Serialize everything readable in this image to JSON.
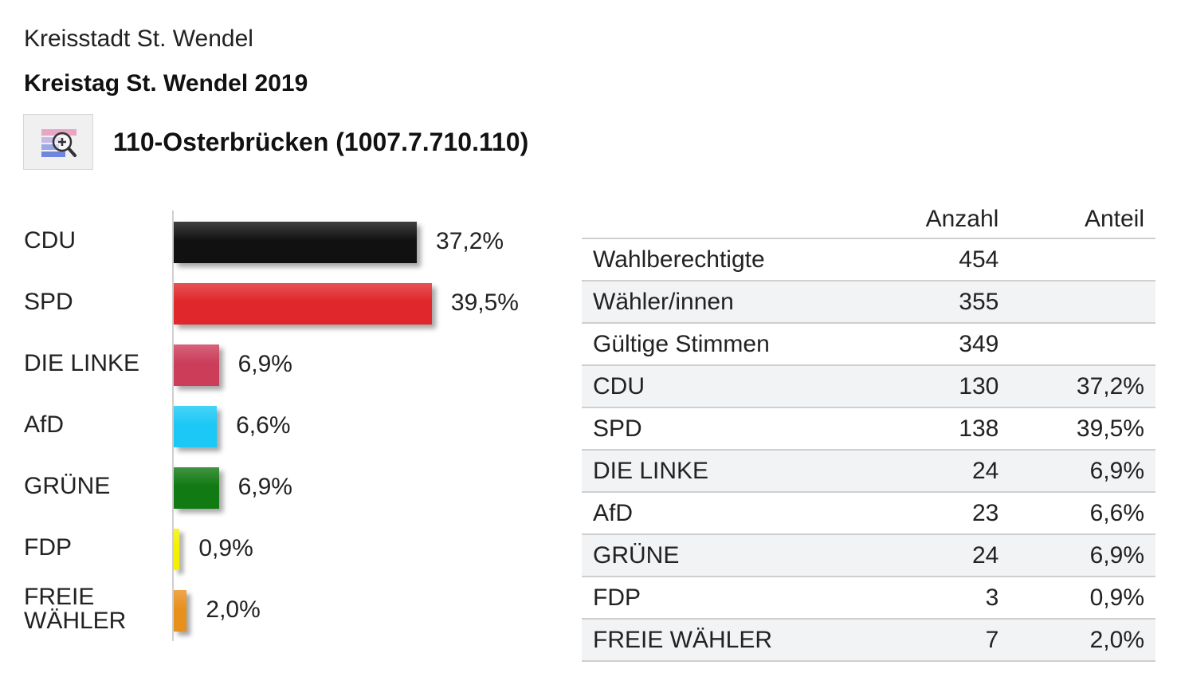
{
  "header": {
    "municipality": "Kreisstadt St. Wendel",
    "election": "Kreistag St. Wendel 2019",
    "district": "110-Osterbrücken (1007.7.710.110)",
    "zoom_icon": "magnifier-zoom-icon"
  },
  "chart_data": {
    "type": "bar",
    "orientation": "horizontal",
    "categories": [
      "CDU",
      "SPD",
      "DIE LINKE",
      "AfD",
      "GRÜNE",
      "FDP",
      "FREIE WÄHLER"
    ],
    "values": [
      37.2,
      39.5,
      6.9,
      6.6,
      6.9,
      0.9,
      2.0
    ],
    "value_labels": [
      "37,2%",
      "39,5%",
      "6,9%",
      "6,6%",
      "6,9%",
      "0,9%",
      "2,0%"
    ],
    "colors": [
      "#111111",
      "#e0272b",
      "#cc3d5a",
      "#1cc8f5",
      "#127a12",
      "#f5f000",
      "#e8901c"
    ],
    "title": "",
    "xlabel": "",
    "ylabel": "",
    "grid": false
  },
  "table": {
    "headers": [
      "",
      "Anzahl",
      "Anteil"
    ],
    "rows": [
      {
        "name": "Wahlberechtigte",
        "count": "454",
        "share": ""
      },
      {
        "name": "Wähler/innen",
        "count": "355",
        "share": ""
      },
      {
        "name": "Gültige Stimmen",
        "count": "349",
        "share": ""
      },
      {
        "name": "CDU",
        "count": "130",
        "share": "37,2%"
      },
      {
        "name": "SPD",
        "count": "138",
        "share": "39,5%"
      },
      {
        "name": "DIE LINKE",
        "count": "24",
        "share": "6,9%"
      },
      {
        "name": "AfD",
        "count": "23",
        "share": "6,6%"
      },
      {
        "name": "GRÜNE",
        "count": "24",
        "share": "6,9%"
      },
      {
        "name": "FDP",
        "count": "3",
        "share": "0,9%"
      },
      {
        "name": "FREIE WÄHLER",
        "count": "7",
        "share": "2,0%"
      }
    ]
  }
}
